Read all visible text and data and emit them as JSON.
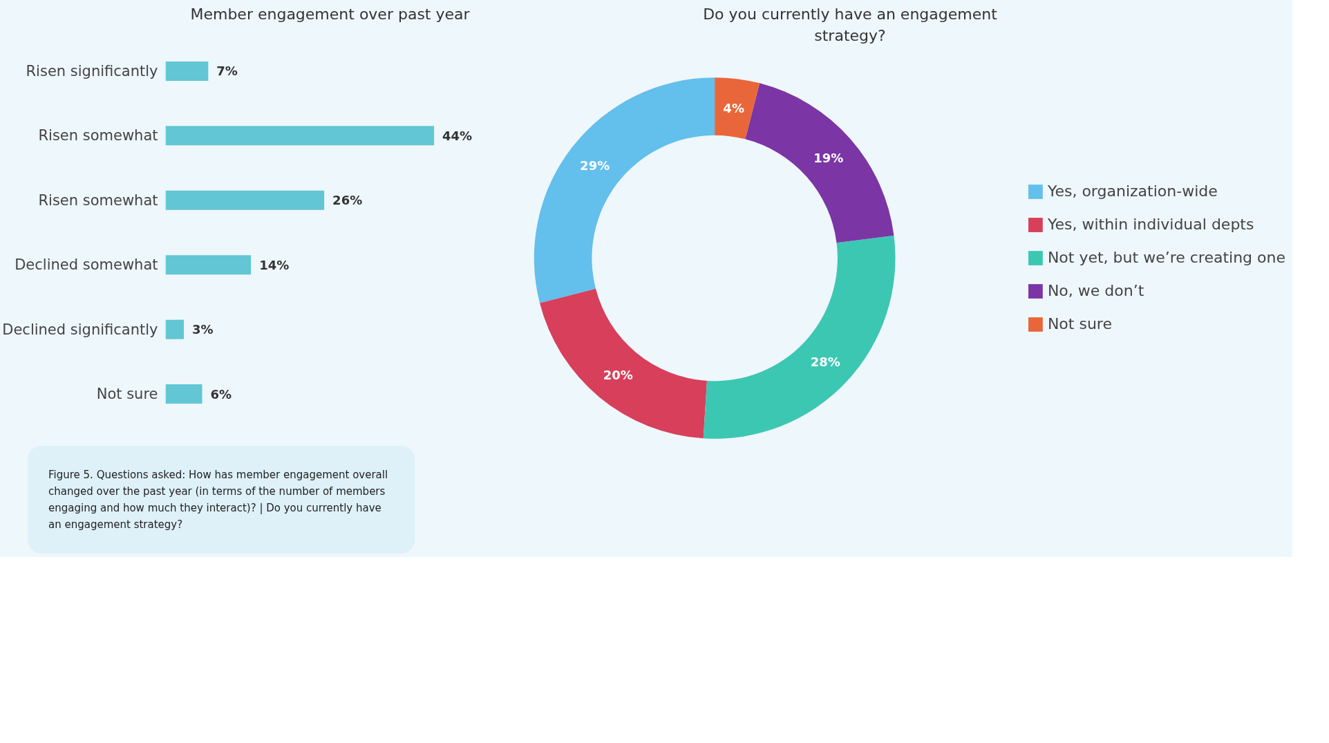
{
  "chart_data": [
    {
      "type": "bar",
      "orientation": "horizontal",
      "title": "Member engagement over past year",
      "categories": [
        "Risen significantly",
        "Risen somewhat",
        "Risen somewhat",
        "Declined somewhat",
        "Declined significantly",
        "Not sure"
      ],
      "values": [
        7,
        44,
        26,
        14,
        3,
        6
      ],
      "color": "#62c6d4",
      "tick_labels": "y",
      "grid": false,
      "value_labels": [
        "7%",
        "44%",
        "26%",
        "14%",
        "3%",
        "6%"
      ],
      "annotations": [
        "Figure 5. Questions asked: How has member engagement overall changed over the past year (in terms of the number of members engaging and how much they interact)?  | Do you currently have an engagement strategy?"
      ]
    },
    {
      "type": "donut",
      "title": "Do you currently have an engagement strategy?",
      "categories": [
        "Yes, organization-wide",
        "Yes, within individual depts",
        "Not yet, but we’re creating one",
        "No, we don’t",
        "Not sure"
      ],
      "values": [
        29,
        20,
        28,
        19,
        4
      ],
      "colors": [
        "#63bfec",
        "#d83f5a",
        "#3cc7b3",
        "#7b35a5",
        "#e8663a"
      ],
      "value_labels": [
        "29%",
        "20%",
        "28%",
        "19%",
        "4%"
      ],
      "legend": "right"
    }
  ]
}
